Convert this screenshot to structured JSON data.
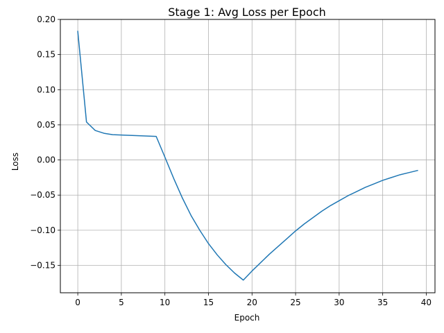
{
  "chart_data": {
    "type": "line",
    "title": "Stage 1: Avg Loss per Epoch",
    "xlabel": "Epoch",
    "ylabel": "Loss",
    "xlim": [
      -2.0,
      41.0
    ],
    "ylim": [
      -0.189,
      0.2
    ],
    "xticks": [
      0,
      5,
      10,
      15,
      20,
      25,
      30,
      35,
      40
    ],
    "xtick_labels": [
      "0",
      "5",
      "10",
      "15",
      "20",
      "25",
      "30",
      "35",
      "40"
    ],
    "yticks": [
      0.2,
      0.15,
      0.1,
      0.05,
      0.0,
      -0.05,
      -0.1,
      -0.15
    ],
    "ytick_labels": [
      "0.20",
      "0.15",
      "0.10",
      "0.05",
      "0.00",
      "−0.05",
      "−0.10",
      "−0.15"
    ],
    "grid": true,
    "line_color": "#1f77b4",
    "series": [
      {
        "x": [
          0,
          1,
          2,
          3,
          4,
          5,
          6,
          7,
          8,
          9,
          10,
          11,
          12,
          13,
          14,
          15,
          16,
          17,
          18,
          19,
          20,
          21,
          22,
          23,
          24,
          25,
          26,
          27,
          28,
          29,
          30,
          31,
          32,
          33,
          34,
          35,
          36,
          37,
          38,
          39
        ],
        "values": [
          0.183,
          0.054,
          0.042,
          0.038,
          0.036,
          0.0355,
          0.035,
          0.0345,
          0.034,
          0.0335,
          0.004,
          -0.026,
          -0.054,
          -0.079,
          -0.1,
          -0.119,
          -0.135,
          -0.149,
          -0.161,
          -0.171,
          -0.158,
          -0.146,
          -0.134,
          -0.123,
          -0.112,
          -0.101,
          -0.091,
          -0.082,
          -0.073,
          -0.065,
          -0.058,
          -0.051,
          -0.045,
          -0.039,
          -0.034,
          -0.029,
          -0.025,
          -0.021,
          -0.018,
          -0.015
        ]
      }
    ]
  }
}
